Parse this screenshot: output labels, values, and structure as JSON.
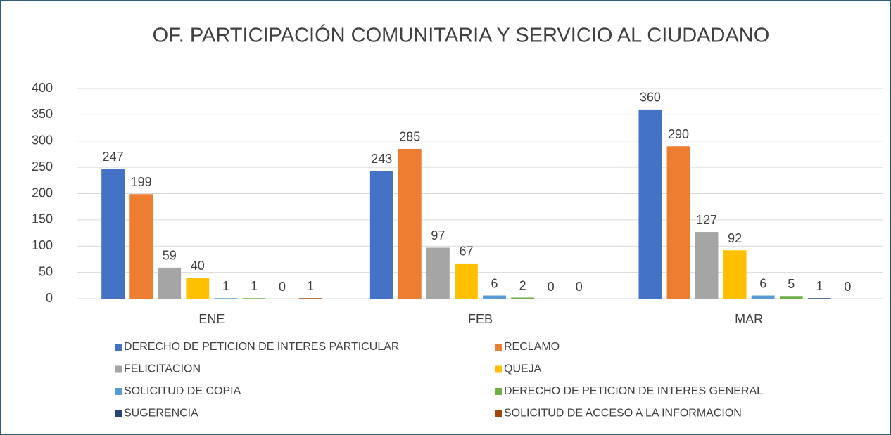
{
  "chart_data": {
    "type": "bar",
    "title": "OF. PARTICIPACIÓN COMUNITARIA Y SERVICIO AL CIUDADANO",
    "categories": [
      "ENE",
      "FEB",
      "MAR"
    ],
    "series": [
      {
        "name": "DERECHO DE PETICION DE INTERES PARTICULAR",
        "color": "#4472c4",
        "values": [
          247,
          243,
          360
        ]
      },
      {
        "name": "RECLAMO",
        "color": "#ed7d31",
        "values": [
          199,
          285,
          290
        ]
      },
      {
        "name": "FELICITACION",
        "color": "#a5a5a5",
        "values": [
          59,
          97,
          127
        ]
      },
      {
        "name": "QUEJA",
        "color": "#ffc000",
        "values": [
          40,
          67,
          92
        ]
      },
      {
        "name": "SOLICITUD DE COPIA",
        "color": "#5b9bd5",
        "values": [
          1,
          6,
          6
        ]
      },
      {
        "name": "DERECHO DE PETICION DE INTERES GENERAL",
        "color": "#70ad47",
        "values": [
          1,
          2,
          5
        ]
      },
      {
        "name": "SUGERENCIA",
        "color": "#264478",
        "values": [
          0,
          0,
          1
        ]
      },
      {
        "name": "SOLICITUD DE ACCESO A LA INFORMACION",
        "color": "#9e480e",
        "values": [
          1,
          0,
          0
        ]
      }
    ],
    "ylim": [
      0,
      400
    ],
    "yticks": [
      0,
      50,
      100,
      150,
      200,
      250,
      300,
      350,
      400
    ],
    "grid": true,
    "legend": "bottom"
  }
}
